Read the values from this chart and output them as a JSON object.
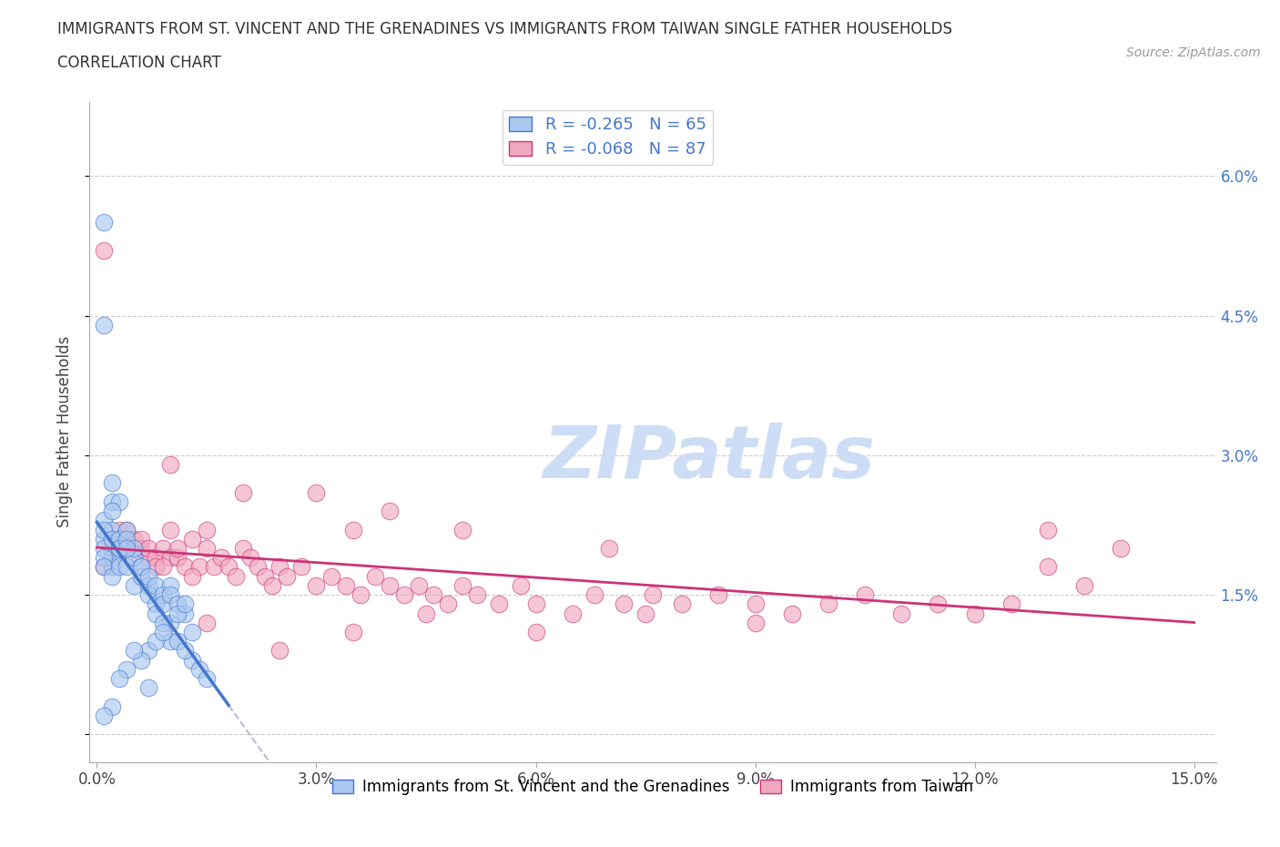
{
  "title_line1": "IMMIGRANTS FROM ST. VINCENT AND THE GRENADINES VS IMMIGRANTS FROM TAIWAN SINGLE FATHER HOUSEHOLDS",
  "title_line2": "CORRELATION CHART",
  "source": "Source: ZipAtlas.com",
  "ylabel_label": "Single Father Households",
  "legend_label1": "Immigrants from St. Vincent and the Grenadines",
  "legend_label2": "Immigrants from Taiwan",
  "r1": -0.265,
  "n1": 65,
  "r2": -0.068,
  "n2": 87,
  "color1": "#aac8f0",
  "color2": "#f0aac0",
  "line_color1": "#4477cc",
  "line_color2": "#cc3377",
  "watermark_color": "#ccddf5",
  "xlim_min": -0.001,
  "xlim_max": 0.153,
  "ylim_min": -0.003,
  "ylim_max": 0.068,
  "xtick_vals": [
    0.0,
    0.03,
    0.06,
    0.09,
    0.12,
    0.15
  ],
  "ytick_vals": [
    0.0,
    0.015,
    0.03,
    0.045,
    0.06
  ],
  "xtick_labels": [
    "0.0%",
    "3.0%",
    "6.0%",
    "9.0%",
    "12.0%",
    "15.0%"
  ],
  "ytick_labels_right": [
    "",
    "1.5%",
    "3.0%",
    "4.5%",
    "6.0%"
  ],
  "background_color": "#ffffff",
  "grid_color": "#cccccc",
  "blue_x": [
    0.002,
    0.003,
    0.001,
    0.001,
    0.002,
    0.001,
    0.001,
    0.002,
    0.003,
    0.002,
    0.001,
    0.001,
    0.002,
    0.002,
    0.003,
    0.002,
    0.001,
    0.003,
    0.001,
    0.002,
    0.003,
    0.004,
    0.003,
    0.004,
    0.005,
    0.004,
    0.005,
    0.006,
    0.005,
    0.004,
    0.006,
    0.007,
    0.006,
    0.007,
    0.008,
    0.007,
    0.008,
    0.009,
    0.01,
    0.008,
    0.009,
    0.01,
    0.011,
    0.012,
    0.01,
    0.011,
    0.012,
    0.013,
    0.01,
    0.009,
    0.007,
    0.008,
    0.006,
    0.005,
    0.004,
    0.003,
    0.009,
    0.011,
    0.013,
    0.012,
    0.014,
    0.015,
    0.007,
    0.002,
    0.001
  ],
  "blue_y": [
    0.025,
    0.025,
    0.055,
    0.044,
    0.027,
    0.023,
    0.021,
    0.022,
    0.02,
    0.024,
    0.022,
    0.02,
    0.021,
    0.019,
    0.02,
    0.018,
    0.019,
    0.021,
    0.018,
    0.017,
    0.018,
    0.022,
    0.02,
    0.018,
    0.019,
    0.021,
    0.02,
    0.018,
    0.016,
    0.02,
    0.017,
    0.016,
    0.018,
    0.015,
    0.014,
    0.017,
    0.016,
    0.015,
    0.016,
    0.013,
    0.014,
    0.015,
    0.014,
    0.013,
    0.012,
    0.013,
    0.014,
    0.011,
    0.01,
    0.012,
    0.009,
    0.01,
    0.008,
    0.009,
    0.007,
    0.006,
    0.011,
    0.01,
    0.008,
    0.009,
    0.007,
    0.006,
    0.005,
    0.003,
    0.002
  ],
  "pink_x": [
    0.001,
    0.002,
    0.001,
    0.002,
    0.003,
    0.004,
    0.003,
    0.004,
    0.005,
    0.005,
    0.006,
    0.007,
    0.006,
    0.007,
    0.008,
    0.008,
    0.009,
    0.01,
    0.009,
    0.01,
    0.011,
    0.012,
    0.011,
    0.013,
    0.014,
    0.013,
    0.015,
    0.016,
    0.015,
    0.017,
    0.018,
    0.019,
    0.02,
    0.021,
    0.022,
    0.023,
    0.024,
    0.025,
    0.026,
    0.028,
    0.03,
    0.032,
    0.034,
    0.036,
    0.038,
    0.04,
    0.042,
    0.044,
    0.046,
    0.048,
    0.05,
    0.052,
    0.055,
    0.058,
    0.06,
    0.065,
    0.068,
    0.072,
    0.076,
    0.08,
    0.085,
    0.09,
    0.095,
    0.1,
    0.105,
    0.11,
    0.115,
    0.12,
    0.125,
    0.03,
    0.035,
    0.04,
    0.01,
    0.02,
    0.05,
    0.07,
    0.045,
    0.035,
    0.025,
    0.015,
    0.06,
    0.075,
    0.09,
    0.13,
    0.14,
    0.13,
    0.135
  ],
  "pink_y": [
    0.052,
    0.02,
    0.018,
    0.02,
    0.022,
    0.022,
    0.021,
    0.02,
    0.021,
    0.019,
    0.02,
    0.019,
    0.021,
    0.02,
    0.019,
    0.018,
    0.02,
    0.019,
    0.018,
    0.022,
    0.019,
    0.018,
    0.02,
    0.021,
    0.018,
    0.017,
    0.022,
    0.018,
    0.02,
    0.019,
    0.018,
    0.017,
    0.02,
    0.019,
    0.018,
    0.017,
    0.016,
    0.018,
    0.017,
    0.018,
    0.016,
    0.017,
    0.016,
    0.015,
    0.017,
    0.016,
    0.015,
    0.016,
    0.015,
    0.014,
    0.016,
    0.015,
    0.014,
    0.016,
    0.014,
    0.013,
    0.015,
    0.014,
    0.015,
    0.014,
    0.015,
    0.014,
    0.013,
    0.014,
    0.015,
    0.013,
    0.014,
    0.013,
    0.014,
    0.026,
    0.022,
    0.024,
    0.029,
    0.026,
    0.022,
    0.02,
    0.013,
    0.011,
    0.009,
    0.012,
    0.011,
    0.013,
    0.012,
    0.022,
    0.02,
    0.018,
    0.016
  ]
}
